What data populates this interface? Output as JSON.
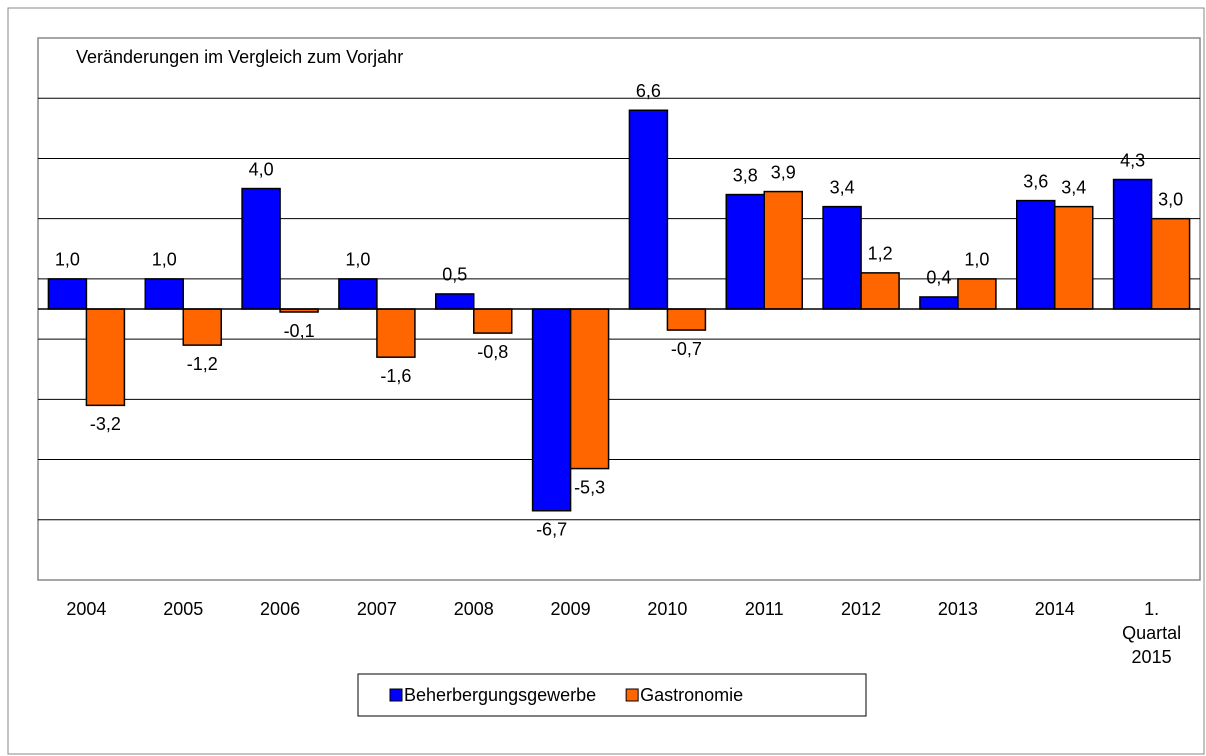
{
  "chart_data": {
    "type": "bar",
    "subtitle": "Veränderungen im Vergleich zum Vorjahr",
    "categories": [
      "2004",
      "2005",
      "2006",
      "2007",
      "2008",
      "2009",
      "2010",
      "2011",
      "2012",
      "2013",
      "2014",
      "1. Quartal 2015"
    ],
    "series": [
      {
        "name": "Beherbergungsgewerbe",
        "color": "#0000ff",
        "values": [
          1.0,
          1.0,
          4.0,
          1.0,
          0.5,
          -6.7,
          6.6,
          3.8,
          3.4,
          0.4,
          3.6,
          4.3
        ],
        "value_labels": [
          "1,0",
          "1,0",
          "4,0",
          "1,0",
          "0,5",
          "-6,7",
          "6,6",
          "3,8",
          "3,4",
          "0,4",
          "3,6",
          "4,3"
        ]
      },
      {
        "name": "Gastronomie",
        "color": "#ff6600",
        "values": [
          -3.2,
          -1.2,
          -0.1,
          -1.6,
          -0.8,
          -5.3,
          -0.7,
          3.9,
          1.2,
          1.0,
          3.4,
          3.0
        ],
        "value_labels": [
          "-3,2",
          "-1,2",
          "-0,1",
          "-1,6",
          "-0,8",
          "-5,3",
          "-0,7",
          "3,9",
          "1,2",
          "1,0",
          "3,4",
          "3,0"
        ]
      }
    ],
    "ylim": [
      -9,
      9
    ],
    "gridlines": [
      -7,
      -5,
      -3,
      -1,
      1,
      3,
      5,
      7
    ],
    "grid": true
  }
}
